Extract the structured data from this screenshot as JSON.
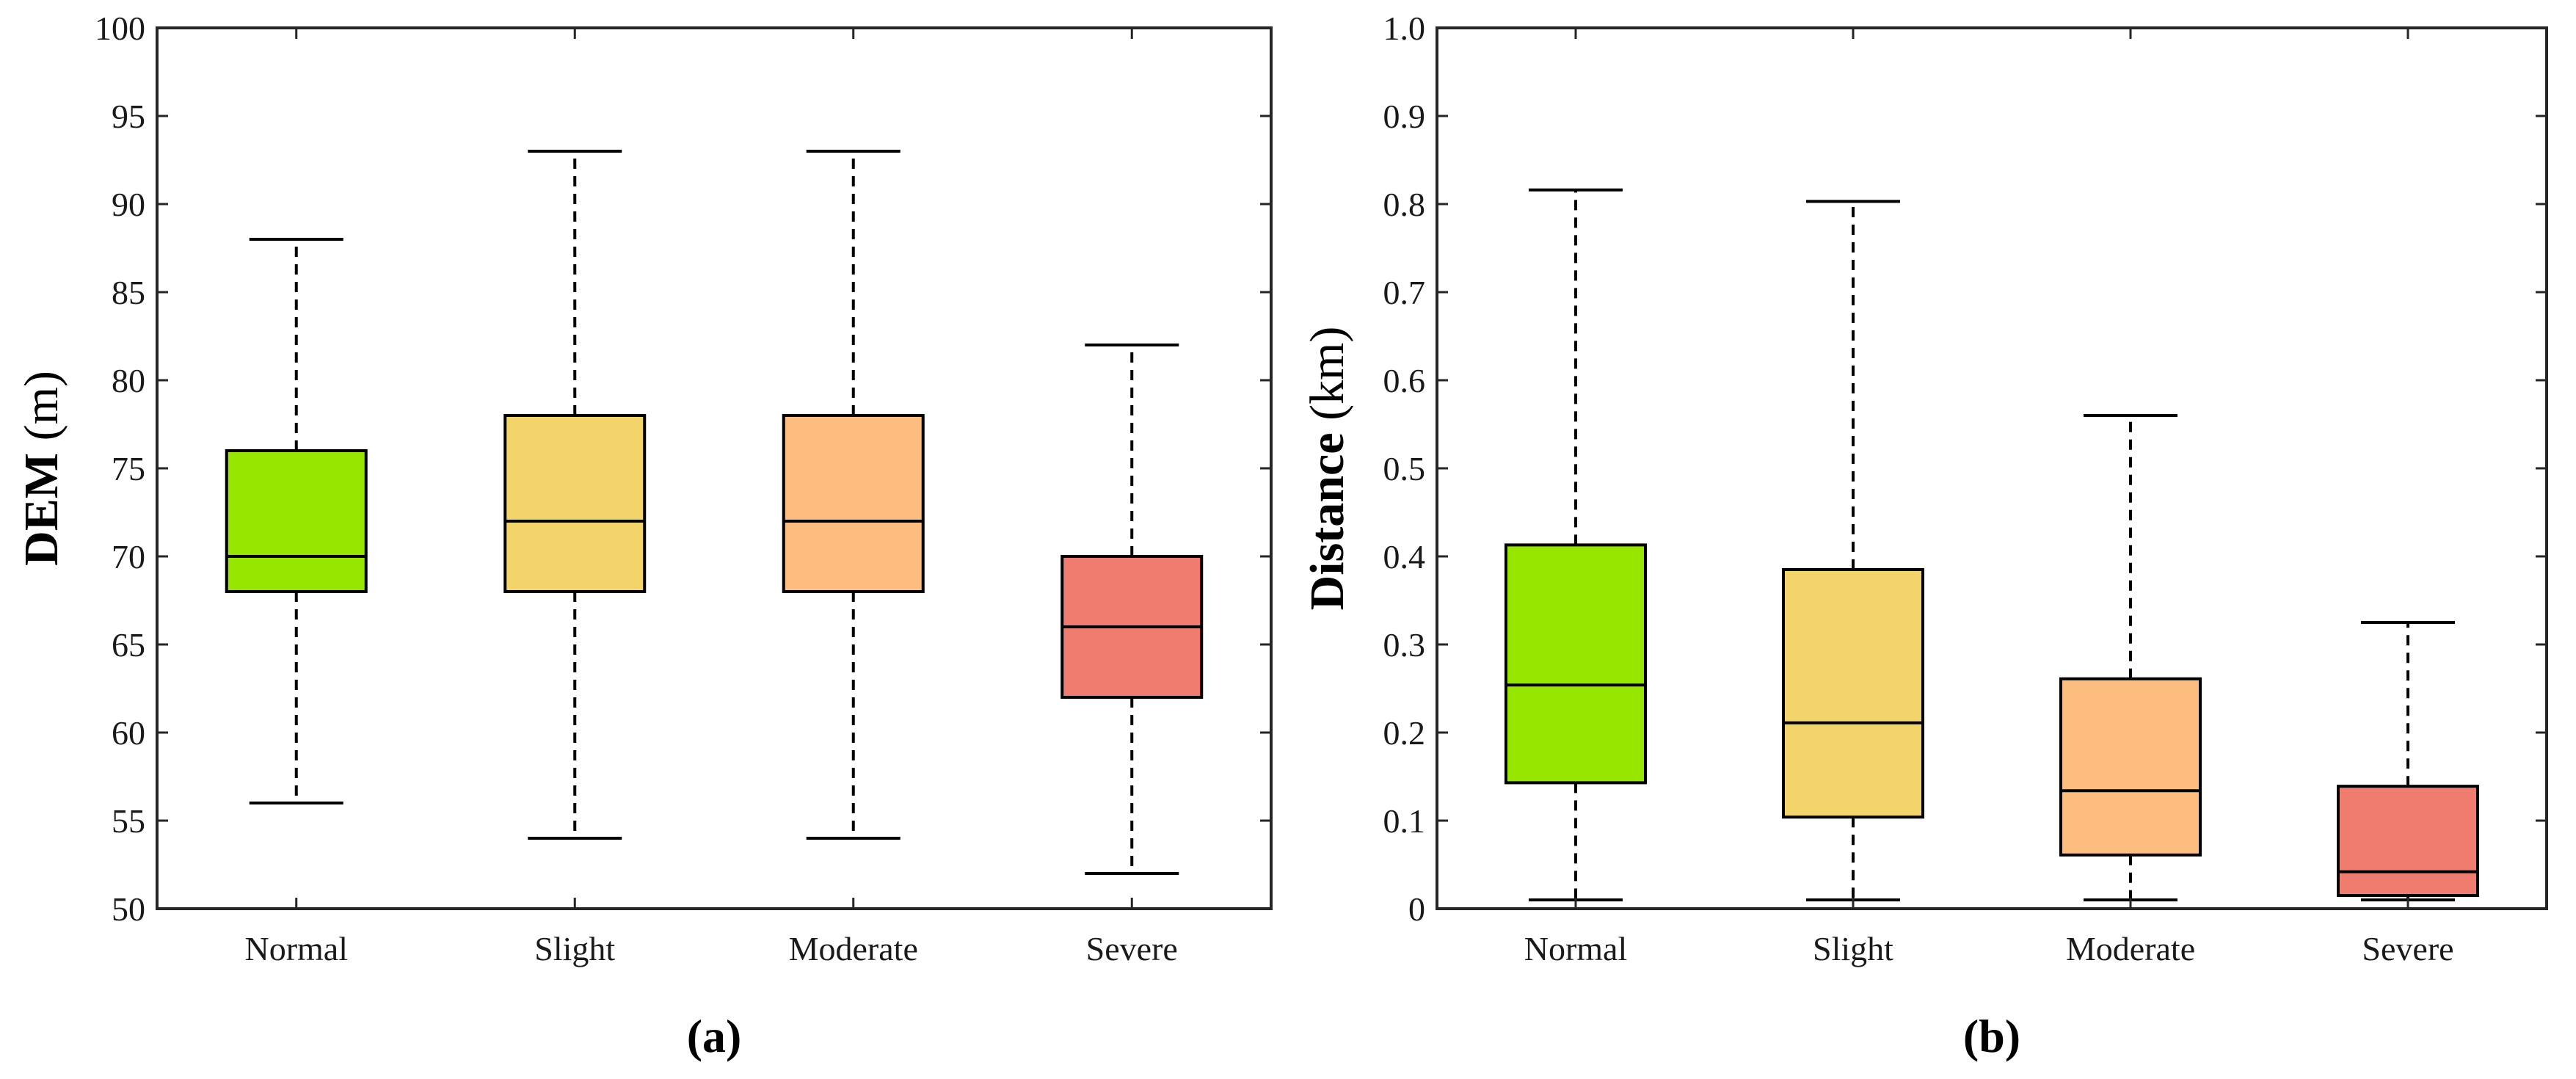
{
  "chart_data": [
    {
      "type": "box",
      "panel_label": "(a)",
      "ylabel_bold": "DEM",
      "ylabel_unit": "(m)",
      "ylim": [
        50,
        100
      ],
      "yticks": [
        50,
        55,
        60,
        65,
        70,
        75,
        80,
        85,
        90,
        95,
        100
      ],
      "ytick_labels": [
        "50",
        "55",
        "60",
        "65",
        "70",
        "75",
        "80",
        "85",
        "90",
        "95",
        "100"
      ],
      "categories": [
        "Normal",
        "Slight",
        "Moderate",
        "Severe"
      ],
      "colors": [
        "#96e600",
        "#f2d46a",
        "#fdbd7e",
        "#f07c70"
      ],
      "boxes": [
        {
          "min": 56,
          "q1": 68,
          "median": 70,
          "q3": 76,
          "max": 88
        },
        {
          "min": 54,
          "q1": 68,
          "median": 72,
          "q3": 78,
          "max": 93
        },
        {
          "min": 54,
          "q1": 68,
          "median": 72,
          "q3": 78,
          "max": 93
        },
        {
          "min": 52,
          "q1": 62,
          "median": 66,
          "q3": 70,
          "max": 82
        }
      ]
    },
    {
      "type": "box",
      "panel_label": "(b)",
      "ylabel_bold": "Distance",
      "ylabel_unit": "(km)",
      "ylim": [
        0,
        1.0
      ],
      "yticks": [
        0,
        0.1,
        0.2,
        0.3,
        0.4,
        0.5,
        0.6,
        0.7,
        0.8,
        0.9,
        1.0
      ],
      "ytick_labels": [
        "0",
        "0.1",
        "0.2",
        "0.3",
        "0.4",
        "0.5",
        "0.6",
        "0.7",
        "0.8",
        "0.9",
        "1.0"
      ],
      "categories": [
        "Normal",
        "Slight",
        "Moderate",
        "Severe"
      ],
      "colors": [
        "#96e600",
        "#f2d46a",
        "#fdbd7e",
        "#f07c70"
      ],
      "boxes": [
        {
          "min": 0.01,
          "q1": 0.143,
          "median": 0.254,
          "q3": 0.413,
          "max": 0.816
        },
        {
          "min": 0.01,
          "q1": 0.104,
          "median": 0.211,
          "q3": 0.385,
          "max": 0.803
        },
        {
          "min": 0.01,
          "q1": 0.061,
          "median": 0.134,
          "q3": 0.261,
          "max": 0.56
        },
        {
          "min": 0.01,
          "q1": 0.015,
          "median": 0.042,
          "q3": 0.139,
          "max": 0.325
        }
      ]
    }
  ]
}
